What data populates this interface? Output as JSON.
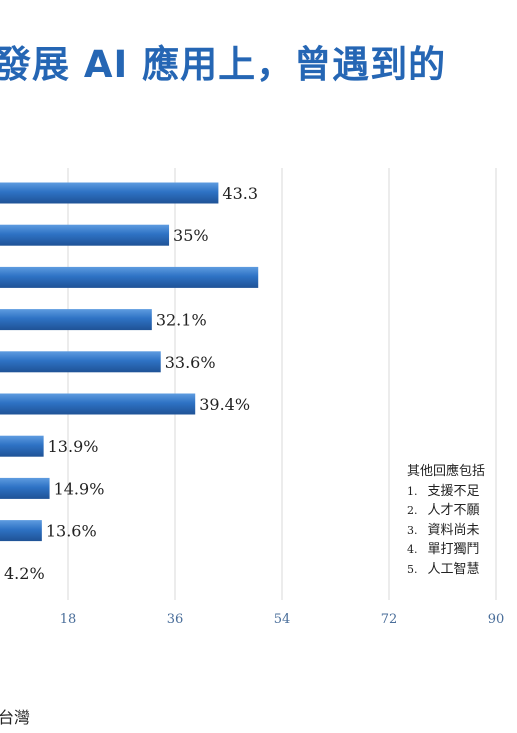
{
  "title": "發展 AI 應用上，曾遇到的",
  "source": "台灣",
  "colors": {
    "bar": "#2e72c4",
    "bar_light": "#5e9ce0",
    "bar_dark": "#1f5296",
    "title": "#2566b4",
    "axis_text": "#4a6e9a",
    "grid": "#d9d9d9"
  },
  "chart_data": {
    "type": "bar",
    "orientation": "horizontal",
    "values": [
      43.3,
      35,
      50,
      32.1,
      33.6,
      39.4,
      13.9,
      14.9,
      13.6,
      4.2
    ],
    "data_labels": [
      "43.3",
      "35%",
      "",
      "32.1%",
      "33.6%",
      "39.4%",
      "13.9%",
      "14.9%",
      "13.6%",
      "4.2%"
    ],
    "x_ticks": [
      "18",
      "36",
      "54",
      "72",
      "90"
    ],
    "xlim": [
      7,
      90
    ],
    "grid": true
  },
  "note": {
    "heading": "其他回應包括",
    "items": [
      {
        "num": "1.",
        "text": "支援不足"
      },
      {
        "num": "2.",
        "text": "人才不願"
      },
      {
        "num": "3.",
        "text": "資料尚未"
      },
      {
        "num": "4.",
        "text": "單打獨鬥"
      },
      {
        "num": "5.",
        "text": "人工智慧"
      }
    ]
  }
}
